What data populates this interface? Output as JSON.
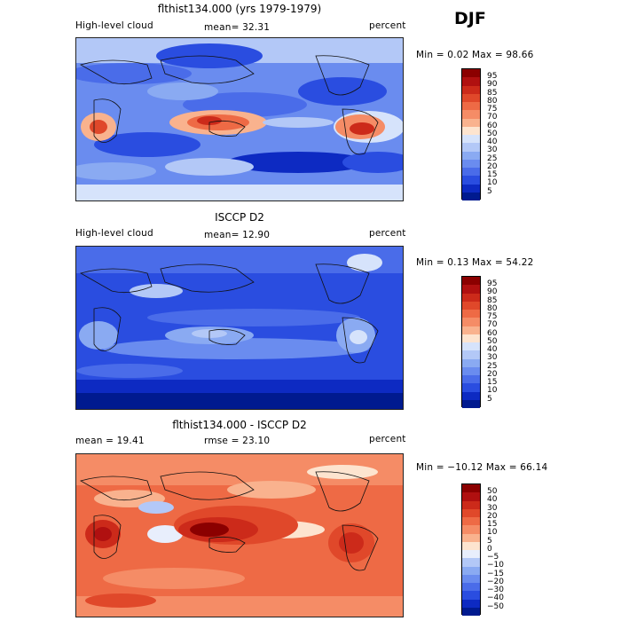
{
  "season": "DJF",
  "panels": [
    {
      "title": "flthist134.000 (yrs 1979-1979)",
      "left_label": "High-level cloud",
      "stat1": "mean=  32.31",
      "stat2": "",
      "units": "percent",
      "minmax": "Min =   0.02 Max =  98.66",
      "levels": [
        "95",
        "90",
        "85",
        "80",
        "75",
        "70",
        "60",
        "50",
        "40",
        "30",
        "25",
        "20",
        "15",
        "10",
        "5"
      ],
      "colors": [
        "#8b0000",
        "#b01010",
        "#cc2a1a",
        "#e0482a",
        "#ee6a45",
        "#f58c66",
        "#f9b28e",
        "#fde4cf",
        "#d6e3fb",
        "#b3c8f7",
        "#8aaaf2",
        "#6a8cef",
        "#4a6ce9",
        "#2a4de0",
        "#0d2ac2",
        "#001a8f"
      ]
    },
    {
      "title": "ISCCP D2",
      "left_label": "High-level cloud",
      "stat1": "mean=  12.90",
      "stat2": "",
      "units": "percent",
      "minmax": "Min =   0.13 Max =  54.22",
      "levels": [
        "95",
        "90",
        "85",
        "80",
        "75",
        "70",
        "60",
        "50",
        "40",
        "30",
        "25",
        "20",
        "15",
        "10",
        "5"
      ],
      "colors": [
        "#8b0000",
        "#b01010",
        "#cc2a1a",
        "#e0482a",
        "#ee6a45",
        "#f58c66",
        "#f9b28e",
        "#fde4cf",
        "#d6e3fb",
        "#b3c8f7",
        "#8aaaf2",
        "#6a8cef",
        "#4a6ce9",
        "#2a4de0",
        "#0d2ac2",
        "#001a8f"
      ]
    },
    {
      "title": "flthist134.000 - ISCCP D2",
      "left_label": "mean =  19.41",
      "stat1": "rmse =  23.10",
      "stat2": "",
      "units": "percent",
      "minmax": "Min = −10.12 Max =  66.14",
      "levels": [
        "50",
        "40",
        "30",
        "20",
        "15",
        "10",
        "5",
        "0",
        "−5",
        "−10",
        "−15",
        "−20",
        "−30",
        "−40",
        "−50"
      ],
      "colors": [
        "#8b0000",
        "#b01010",
        "#cc2a1a",
        "#e0482a",
        "#ee6a45",
        "#f58c66",
        "#f9b28e",
        "#fde4cf",
        "#e8eefc",
        "#b3c8f7",
        "#8aaaf2",
        "#6a8cef",
        "#4a6ce9",
        "#2a4de0",
        "#0d2ac2",
        "#001a8f"
      ]
    }
  ]
}
